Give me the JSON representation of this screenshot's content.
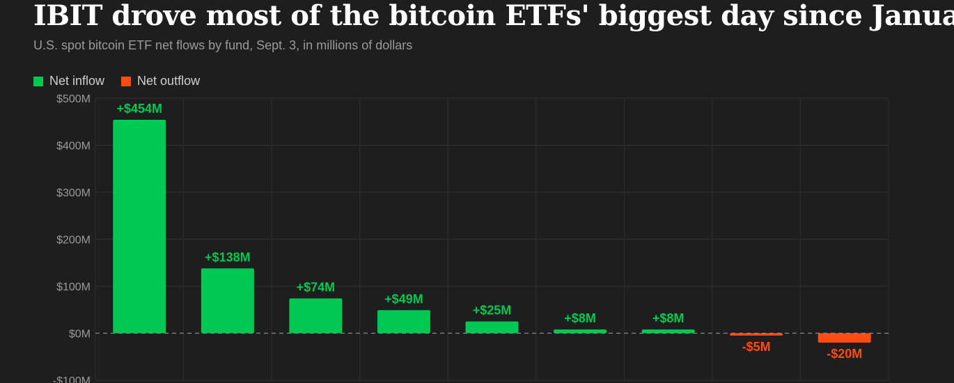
{
  "title": "IBIT drove most of the bitcoin ETFs' biggest day since January",
  "subtitle": "U.S. spot bitcoin ETF net flows by fund, Sept. 3, in millions of dollars",
  "legend": [
    {
      "label": "Net inflow",
      "color": "#00c853"
    },
    {
      "label": "Net outflow",
      "color": "#ff4d12"
    }
  ],
  "chart_data": {
    "type": "bar",
    "values": [
      454,
      138,
      74,
      49,
      25,
      8,
      8,
      -5,
      -20
    ],
    "value_labels": [
      "+$454M",
      "+$138M",
      "+$74M",
      "+$49M",
      "+$25M",
      "+$8M",
      "+$8M",
      "-$5M",
      "-$20M"
    ],
    "ylim": [
      -100,
      500
    ],
    "y_ticks": [
      500,
      400,
      300,
      200,
      100,
      0,
      -100
    ],
    "y_tick_labels": [
      "$500M",
      "$400M",
      "$300M",
      "$200M",
      "$100M",
      "$0M",
      "-$100M"
    ],
    "grid": true,
    "legend_position": "top-left",
    "colors": {
      "inflow": "#00c853",
      "outflow": "#ff4d12"
    }
  }
}
